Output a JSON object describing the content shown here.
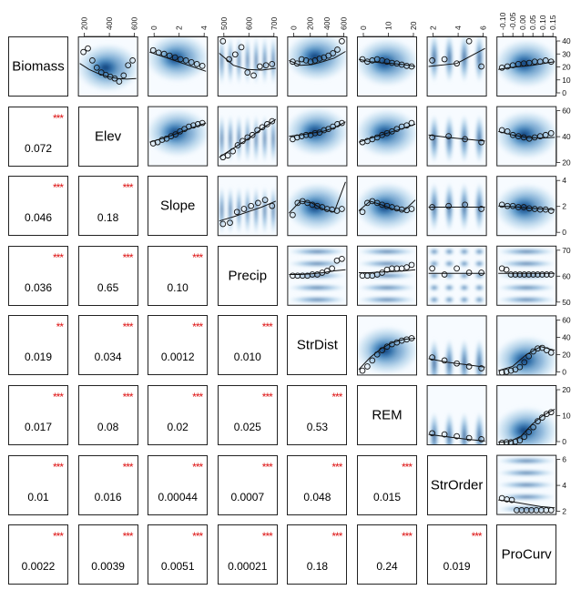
{
  "chart_data": {
    "type": "scatterplot-matrix",
    "variables": [
      "Biomass",
      "Elev",
      "Slope",
      "Precip",
      "StrDist",
      "REM",
      "StrOrder",
      "ProCurv"
    ],
    "top_axis_ticks": [
      [
        "200",
        "400",
        "600"
      ],
      [
        "0",
        "2",
        "4"
      ],
      [
        "500",
        "600",
        "700"
      ],
      [
        "0",
        "200",
        "400",
        "600"
      ],
      [
        "0",
        "10",
        "20"
      ],
      [
        "2",
        "4",
        "6"
      ],
      [
        "-0.10",
        "-0.05",
        "0.00",
        "0.05",
        "0.10",
        "0.15"
      ]
    ],
    "right_axis_ticks": [
      [
        "40",
        "30",
        "20",
        "10",
        "0"
      ],
      [
        "60",
        "40",
        "20"
      ],
      [
        "4",
        "2",
        "0"
      ],
      [
        "70",
        "60",
        "50"
      ],
      [
        "60",
        "40",
        "20",
        "0"
      ],
      [
        "20",
        "10",
        "0"
      ],
      [
        "6",
        "4",
        "2"
      ]
    ],
    "correlations": [
      {
        "row": 1,
        "col": 0,
        "value": "0.072",
        "stars": "***"
      },
      {
        "row": 2,
        "col": 0,
        "value": "0.046",
        "stars": "***"
      },
      {
        "row": 2,
        "col": 1,
        "value": "0.18",
        "stars": "***"
      },
      {
        "row": 3,
        "col": 0,
        "value": "0.036",
        "stars": "***"
      },
      {
        "row": 3,
        "col": 1,
        "value": "0.65",
        "stars": "***"
      },
      {
        "row": 3,
        "col": 2,
        "value": "0.10",
        "stars": "***"
      },
      {
        "row": 4,
        "col": 0,
        "value": "0.019",
        "stars": "**"
      },
      {
        "row": 4,
        "col": 1,
        "value": "0.034",
        "stars": "***"
      },
      {
        "row": 4,
        "col": 2,
        "value": "0.0012",
        "stars": "***"
      },
      {
        "row": 4,
        "col": 3,
        "value": "0.010",
        "stars": "***"
      },
      {
        "row": 5,
        "col": 0,
        "value": "0.017",
        "stars": "***"
      },
      {
        "row": 5,
        "col": 1,
        "value": "0.08",
        "stars": "***"
      },
      {
        "row": 5,
        "col": 2,
        "value": "0.02",
        "stars": "***"
      },
      {
        "row": 5,
        "col": 3,
        "value": "0.025",
        "stars": "***"
      },
      {
        "row": 5,
        "col": 4,
        "value": "0.53",
        "stars": "***"
      },
      {
        "row": 6,
        "col": 0,
        "value": "0.01",
        "stars": "***"
      },
      {
        "row": 6,
        "col": 1,
        "value": "0.016",
        "stars": "***"
      },
      {
        "row": 6,
        "col": 2,
        "value": "0.00044",
        "stars": "***"
      },
      {
        "row": 6,
        "col": 3,
        "value": "0.0007",
        "stars": "***"
      },
      {
        "row": 6,
        "col": 4,
        "value": "0.048",
        "stars": "***"
      },
      {
        "row": 6,
        "col": 5,
        "value": "0.015",
        "stars": "***"
      },
      {
        "row": 7,
        "col": 0,
        "value": "0.0022",
        "stars": "***"
      },
      {
        "row": 7,
        "col": 1,
        "value": "0.0039",
        "stars": "***"
      },
      {
        "row": 7,
        "col": 2,
        "value": "0.0051",
        "stars": "***"
      },
      {
        "row": 7,
        "col": 3,
        "value": "0.00021",
        "stars": "***"
      },
      {
        "row": 7,
        "col": 4,
        "value": "0.18",
        "stars": "***"
      },
      {
        "row": 7,
        "col": 5,
        "value": "0.24",
        "stars": "***"
      },
      {
        "row": 7,
        "col": 6,
        "value": "0.019",
        "stars": "***"
      }
    ],
    "upper_panels": [
      {
        "row": 0,
        "col": 1,
        "style": "cloud",
        "trend": [
          0.55,
          0.45,
          0.38,
          0.33,
          0.3,
          0.29,
          0.3
        ],
        "points": [
          0.74,
          0.8,
          0.6,
          0.48,
          0.4,
          0.36,
          0.33,
          0.3,
          0.25,
          0.35,
          0.52,
          0.6
        ]
      },
      {
        "row": 0,
        "col": 2,
        "style": "cloud",
        "trend": [
          0.74,
          0.66,
          0.58,
          0.5,
          0.42
        ],
        "points": [
          0.77,
          0.73,
          0.71,
          0.68,
          0.65,
          0.62,
          0.6,
          0.57,
          0.54,
          0.51
        ]
      },
      {
        "row": 0,
        "col": 3,
        "style": "bands",
        "trend": [
          0.72,
          0.52,
          0.45,
          0.44,
          0.47
        ],
        "points": [
          0.92,
          0.62,
          0.7,
          0.82,
          0.4,
          0.35,
          0.5,
          0.52,
          0.54
        ]
      },
      {
        "row": 0,
        "col": 4,
        "style": "cloud",
        "trend": [
          0.6,
          0.52,
          0.53,
          0.58,
          0.64,
          0.75
        ],
        "points": [
          0.58,
          0.55,
          0.62,
          0.6,
          0.58,
          0.6,
          0.63,
          0.65,
          0.68,
          0.72,
          0.78,
          0.92
        ]
      },
      {
        "row": 0,
        "col": 5,
        "style": "cloud",
        "trend": [
          0.62,
          0.58,
          0.56,
          0.55,
          0.53,
          0.5
        ],
        "points": [
          0.62,
          0.58,
          0.6,
          0.62,
          0.6,
          0.58,
          0.56,
          0.55,
          0.53,
          0.51,
          0.5
        ]
      },
      {
        "row": 0,
        "col": 6,
        "style": "vbands",
        "trend": [
          0.5,
          0.55,
          0.8
        ],
        "points": [
          0.6,
          0.62,
          0.55,
          0.92,
          0.5
        ]
      },
      {
        "row": 0,
        "col": 7,
        "style": "cloud",
        "trend": [
          0.45,
          0.48,
          0.5,
          0.52,
          0.55,
          0.58
        ],
        "points": [
          0.48,
          0.5,
          0.52,
          0.54,
          0.55,
          0.56,
          0.58,
          0.58,
          0.6,
          0.58
        ]
      },
      {
        "row": 1,
        "col": 2,
        "style": "cloud",
        "trend": [
          0.4,
          0.47,
          0.55,
          0.64,
          0.72
        ],
        "points": [
          0.38,
          0.4,
          0.44,
          0.46,
          0.5,
          0.53,
          0.58,
          0.62,
          0.66,
          0.68,
          0.7,
          0.72
        ]
      },
      {
        "row": 1,
        "col": 3,
        "style": "bands",
        "trend": [
          0.15,
          0.3,
          0.45,
          0.62,
          0.78
        ],
        "points": [
          0.15,
          0.18,
          0.25,
          0.35,
          0.42,
          0.48,
          0.52,
          0.6,
          0.65,
          0.7,
          0.75
        ]
      },
      {
        "row": 1,
        "col": 4,
        "style": "cloud",
        "trend": [
          0.5,
          0.52,
          0.55,
          0.58,
          0.64,
          0.74
        ],
        "points": [
          0.45,
          0.48,
          0.5,
          0.52,
          0.52,
          0.55,
          0.56,
          0.6,
          0.62,
          0.66,
          0.7,
          0.72
        ]
      },
      {
        "row": 1,
        "col": 5,
        "style": "cloud",
        "trend": [
          0.4,
          0.48,
          0.55,
          0.62,
          0.7
        ],
        "points": [
          0.4,
          0.42,
          0.45,
          0.48,
          0.52,
          0.55,
          0.58,
          0.62,
          0.66,
          0.68,
          0.72
        ]
      },
      {
        "row": 1,
        "col": 6,
        "style": "vbands",
        "trend": [
          0.52,
          0.48,
          0.45,
          0.42
        ],
        "points": [
          0.48,
          0.5,
          0.45,
          0.4
        ]
      },
      {
        "row": 1,
        "col": 7,
        "style": "cloud",
        "trend": [
          0.58,
          0.52,
          0.48,
          0.47,
          0.48
        ],
        "points": [
          0.6,
          0.58,
          0.52,
          0.5,
          0.48,
          0.46,
          0.48,
          0.5,
          0.52,
          0.55
        ]
      },
      {
        "row": 2,
        "col": 3,
        "style": "bands",
        "trend": [
          0.25,
          0.32,
          0.4,
          0.48,
          0.58
        ],
        "points": [
          0.2,
          0.22,
          0.4,
          0.45,
          0.5,
          0.55,
          0.6,
          0.5
        ]
      },
      {
        "row": 2,
        "col": 4,
        "style": "cloud",
        "trend": [
          0.38,
          0.58,
          0.55,
          0.45,
          0.4,
          0.9
        ],
        "points": [
          0.35,
          0.55,
          0.58,
          0.55,
          0.52,
          0.5,
          0.48,
          0.45,
          0.44,
          0.42,
          0.45
        ]
      },
      {
        "row": 2,
        "col": 5,
        "style": "cloud",
        "trend": [
          0.42,
          0.58,
          0.52,
          0.45,
          0.42,
          0.6
        ],
        "points": [
          0.4,
          0.55,
          0.58,
          0.55,
          0.52,
          0.5,
          0.48,
          0.46,
          0.44,
          0.43,
          0.45
        ]
      },
      {
        "row": 2,
        "col": 6,
        "style": "vbands",
        "trend": [
          0.48,
          0.48,
          0.48
        ],
        "points": [
          0.48,
          0.5,
          0.52,
          0.45
        ]
      },
      {
        "row": 2,
        "col": 7,
        "style": "cloud",
        "trend": [
          0.5,
          0.49,
          0.47,
          0.45,
          0.44
        ],
        "points": [
          0.52,
          0.5,
          0.5,
          0.48,
          0.48,
          0.46,
          0.45,
          0.44,
          0.44,
          0.42
        ]
      },
      {
        "row": 3,
        "col": 4,
        "style": "hbands",
        "trend": [
          0.52,
          0.52,
          0.53,
          0.55,
          0.58,
          0.6
        ],
        "points": [
          0.5,
          0.5,
          0.5,
          0.5,
          0.52,
          0.52,
          0.55,
          0.58,
          0.62,
          0.75,
          0.78
        ]
      },
      {
        "row": 3,
        "col": 5,
        "style": "hbands",
        "trend": [
          0.55,
          0.55,
          0.56,
          0.57,
          0.58,
          0.6
        ],
        "points": [
          0.5,
          0.5,
          0.5,
          0.52,
          0.55,
          0.6,
          0.62,
          0.62,
          0.62,
          0.64,
          0.68
        ]
      },
      {
        "row": 3,
        "col": 6,
        "style": "grid",
        "trend": [
          0.54,
          0.54,
          0.54
        ],
        "points": [
          0.62,
          0.52,
          0.62,
          0.55,
          0.55
        ]
      },
      {
        "row": 3,
        "col": 7,
        "style": "hbands",
        "trend": [
          0.54,
          0.54,
          0.54,
          0.54,
          0.54
        ],
        "points": [
          0.62,
          0.6,
          0.52,
          0.52,
          0.52,
          0.52,
          0.52,
          0.52,
          0.52,
          0.52,
          0.52,
          0.52
        ]
      },
      {
        "row": 4,
        "col": 5,
        "style": "cloud",
        "trend": [
          0.1,
          0.3,
          0.45,
          0.55,
          0.6,
          0.62
        ],
        "points": [
          0.08,
          0.15,
          0.25,
          0.35,
          0.42,
          0.48,
          0.52,
          0.55,
          0.58,
          0.6,
          0.62
        ]
      },
      {
        "row": 4,
        "col": 6,
        "style": "vbands",
        "trend": [
          0.28,
          0.22,
          0.18,
          0.14
        ],
        "points": [
          0.3,
          0.25,
          0.2,
          0.15,
          0.12
        ]
      },
      {
        "row": 4,
        "col": 7,
        "style": "cloud",
        "trend": [
          0.08,
          0.15,
          0.35,
          0.48,
          0.42
        ],
        "points": [
          0.05,
          0.06,
          0.08,
          0.1,
          0.14,
          0.22,
          0.32,
          0.4,
          0.45,
          0.46,
          0.42,
          0.38
        ]
      },
      {
        "row": 5,
        "col": 6,
        "style": "vbands",
        "trend": [
          0.18,
          0.14,
          0.1,
          0.07
        ],
        "points": [
          0.2,
          0.18,
          0.15,
          0.12,
          0.1
        ]
      },
      {
        "row": 5,
        "col": 7,
        "style": "cloud",
        "trend": [
          0.05,
          0.06,
          0.15,
          0.35,
          0.5,
          0.6
        ],
        "points": [
          0.04,
          0.05,
          0.05,
          0.06,
          0.08,
          0.14,
          0.22,
          0.3,
          0.4,
          0.46,
          0.52,
          0.55
        ]
      },
      {
        "row": 6,
        "col": 7,
        "style": "hbands",
        "trend": [
          0.25,
          0.22,
          0.18,
          0.14,
          0.12
        ],
        "points": [
          0.28,
          0.26,
          0.25,
          0.08,
          0.08,
          0.08,
          0.08,
          0.08,
          0.08,
          0.08,
          0.08
        ]
      }
    ]
  }
}
